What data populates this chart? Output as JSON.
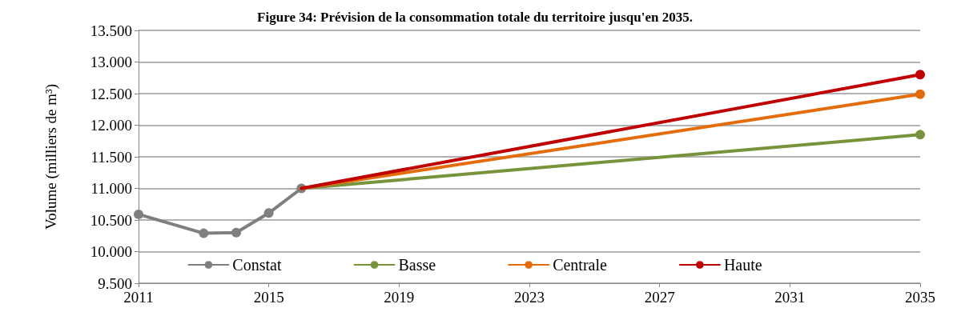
{
  "chart_data": {
    "type": "line",
    "title": "Figure 34: Prévision de la consommation totale du territoire jusqu'en 2035.",
    "ylabel": "Volume (milliers de m³)",
    "series": [
      {
        "name": "Constat",
        "color": "#7f7f7f",
        "x": [
          2011,
          2013,
          2014,
          2015,
          2016
        ],
        "values": [
          10590,
          10290,
          10300,
          10610,
          11000
        ]
      },
      {
        "name": "Basse",
        "color": "#77933c",
        "x": [
          2016,
          2035
        ],
        "values": [
          11000,
          11850
        ]
      },
      {
        "name": "Centrale",
        "color": "#e46c0a",
        "x": [
          2016,
          2035
        ],
        "values": [
          11000,
          12490
        ]
      },
      {
        "name": "Haute",
        "color": "#c00000",
        "x": [
          2016,
          2035
        ],
        "values": [
          11000,
          12800
        ]
      }
    ],
    "xlim": [
      2011,
      2035
    ],
    "xticks": [
      2011,
      2015,
      2019,
      2023,
      2027,
      2031,
      2035
    ],
    "ylim": [
      9500,
      13500
    ],
    "yticks": [
      {
        "value": 9500,
        "label": "9.500"
      },
      {
        "value": 10000,
        "label": "10.000"
      },
      {
        "value": 10500,
        "label": "10.500"
      },
      {
        "value": 11000,
        "label": "11.000"
      },
      {
        "value": 11500,
        "label": "11.500"
      },
      {
        "value": 12000,
        "label": "12.000"
      },
      {
        "value": 12500,
        "label": "12.500"
      },
      {
        "value": 13000,
        "label": "13.000"
      },
      {
        "value": 13500,
        "label": "13.500"
      }
    ],
    "grid": "y",
    "legend": "bottom",
    "marker": "circle",
    "line_style": "solid"
  }
}
